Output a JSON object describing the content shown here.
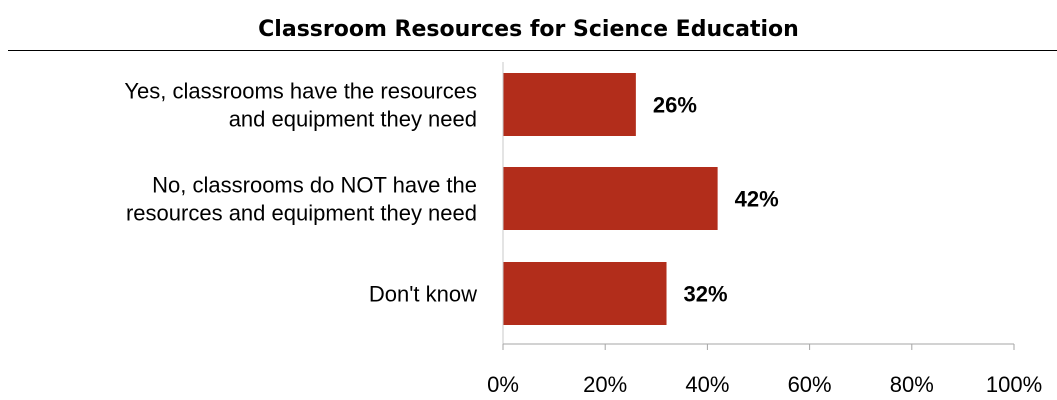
{
  "chart_data": {
    "type": "bar",
    "orientation": "horizontal",
    "title": "Classroom Resources for Science Education",
    "categories": [
      [
        "Yes, classrooms have the resources",
        "and equipment they need"
      ],
      [
        "No, classrooms do NOT have the",
        "resources and equipment they need"
      ],
      [
        "Don't know"
      ]
    ],
    "values": [
      26,
      42,
      32
    ],
    "value_labels": [
      "26%",
      "42%",
      "32%"
    ],
    "xlim": [
      0,
      100
    ],
    "xticks": [
      0,
      20,
      40,
      60,
      80,
      100
    ],
    "xtick_labels": [
      "0%",
      "20%",
      "40%",
      "60%",
      "80%",
      "100%"
    ],
    "xlabel": "",
    "ylabel": "",
    "grid": false,
    "legend": "none",
    "bar_color": "#B22D1B"
  }
}
